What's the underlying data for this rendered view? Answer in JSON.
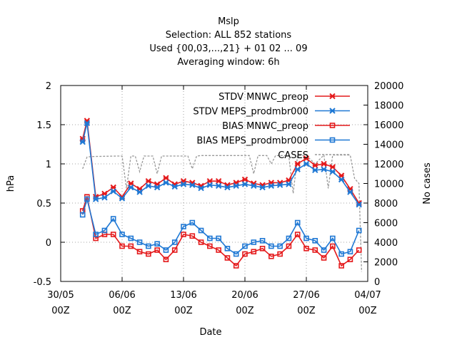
{
  "chart_data": {
    "type": "line",
    "title_lines": [
      "Mslp",
      "Selection: ALL    852 stations",
      "Used {00,03,...,21} + 01 02 ... 09",
      "Averaging window:  6h"
    ],
    "xlabel": "Date",
    "ylabel": "hPa",
    "y2label": "No cases",
    "ylim": [
      -0.5,
      2
    ],
    "y2lim": [
      0,
      20000
    ],
    "xlim_days": [
      0,
      35
    ],
    "y_ticks": [
      {
        "v": -0.5,
        "label": "-0.5"
      },
      {
        "v": 0,
        "label": "0"
      },
      {
        "v": 0.5,
        "label": "0.5"
      },
      {
        "v": 1,
        "label": "1"
      },
      {
        "v": 1.5,
        "label": "1.5"
      },
      {
        "v": 2,
        "label": "2"
      }
    ],
    "y2_ticks": [
      {
        "v": 0,
        "label": "0"
      },
      {
        "v": 2000,
        "label": "2000"
      },
      {
        "v": 4000,
        "label": "4000"
      },
      {
        "v": 6000,
        "label": "6000"
      },
      {
        "v": 8000,
        "label": "8000"
      },
      {
        "v": 10000,
        "label": "10000"
      },
      {
        "v": 12000,
        "label": "12000"
      },
      {
        "v": 14000,
        "label": "14000"
      },
      {
        "v": 16000,
        "label": "16000"
      },
      {
        "v": 18000,
        "label": "18000"
      },
      {
        "v": 20000,
        "label": "20000"
      }
    ],
    "x_ticks": [
      {
        "day": 0,
        "label": "30/05",
        "label2": "00Z"
      },
      {
        "day": 7,
        "label": "06/06",
        "label2": "00Z"
      },
      {
        "day": 14,
        "label": "13/06",
        "label2": "00Z"
      },
      {
        "day": 21,
        "label": "20/06",
        "label2": "00Z"
      },
      {
        "day": 28,
        "label": "27/06",
        "label2": "00Z"
      },
      {
        "day": 35,
        "label": "04/07",
        "label2": "00Z"
      }
    ],
    "grid": true,
    "legend_position": "top-right",
    "series": [
      {
        "name": "STDV MNWC_preop",
        "color": "#e41a1c",
        "marker": "x",
        "axis": "y1",
        "x": [
          2.5,
          3.0,
          4.0,
          5.0,
          6.0,
          7.0,
          8.0,
          9.0,
          10.0,
          11.0,
          12.0,
          13.0,
          14.0,
          15.0,
          16.0,
          17.0,
          18.0,
          19.0,
          20.0,
          21.0,
          22.0,
          23.0,
          24.0,
          25.0,
          26.0,
          27.0,
          28.0,
          29.0,
          30.0,
          31.0,
          32.0,
          33.0,
          34.0
        ],
        "y": [
          1.32,
          1.55,
          0.58,
          0.62,
          0.7,
          0.58,
          0.75,
          0.68,
          0.78,
          0.74,
          0.82,
          0.74,
          0.78,
          0.76,
          0.72,
          0.78,
          0.78,
          0.73,
          0.76,
          0.8,
          0.75,
          0.73,
          0.76,
          0.76,
          0.79,
          1.0,
          1.07,
          0.98,
          1.0,
          0.96,
          0.85,
          0.68,
          0.5
        ]
      },
      {
        "name": "STDV MEPS_prodmbr000",
        "color": "#1f78d4",
        "marker": "x",
        "axis": "y1",
        "x": [
          2.5,
          3.0,
          4.0,
          5.0,
          6.0,
          7.0,
          8.0,
          9.0,
          10.0,
          11.0,
          12.0,
          13.0,
          14.0,
          15.0,
          16.0,
          17.0,
          18.0,
          19.0,
          20.0,
          21.0,
          22.0,
          23.0,
          24.0,
          25.0,
          26.0,
          27.0,
          28.0,
          29.0,
          30.0,
          31.0,
          32.0,
          33.0,
          34.0
        ],
        "y": [
          1.28,
          1.52,
          0.55,
          0.57,
          0.65,
          0.56,
          0.7,
          0.64,
          0.72,
          0.7,
          0.76,
          0.71,
          0.74,
          0.73,
          0.69,
          0.73,
          0.72,
          0.7,
          0.72,
          0.74,
          0.72,
          0.7,
          0.72,
          0.73,
          0.74,
          0.93,
          1.0,
          0.92,
          0.93,
          0.9,
          0.8,
          0.64,
          0.48
        ]
      },
      {
        "name": "BIAS MNWC_preop",
        "color": "#e41a1c",
        "marker": "square",
        "axis": "y1",
        "x": [
          2.5,
          3.0,
          4.0,
          5.0,
          6.0,
          7.0,
          8.0,
          9.0,
          10.0,
          11.0,
          12.0,
          13.0,
          14.0,
          15.0,
          16.0,
          17.0,
          18.0,
          19.0,
          20.0,
          21.0,
          22.0,
          23.0,
          24.0,
          25.0,
          26.0,
          27.0,
          28.0,
          29.0,
          30.0,
          31.0,
          32.0,
          33.0,
          34.0
        ],
        "y": [
          0.4,
          0.58,
          0.05,
          0.1,
          0.1,
          -0.05,
          -0.05,
          -0.12,
          -0.15,
          -0.1,
          -0.22,
          -0.1,
          0.1,
          0.08,
          0.0,
          -0.05,
          -0.1,
          -0.2,
          -0.3,
          -0.15,
          -0.12,
          -0.08,
          -0.18,
          -0.15,
          -0.05,
          0.1,
          -0.08,
          -0.1,
          -0.2,
          -0.05,
          -0.3,
          -0.22,
          -0.1
        ]
      },
      {
        "name": "BIAS MEPS_prodmbr000",
        "color": "#1f78d4",
        "marker": "square",
        "axis": "y1",
        "x": [
          2.5,
          3.0,
          4.0,
          5.0,
          6.0,
          7.0,
          8.0,
          9.0,
          10.0,
          11.0,
          12.0,
          13.0,
          14.0,
          15.0,
          16.0,
          17.0,
          18.0,
          19.0,
          20.0,
          21.0,
          22.0,
          23.0,
          24.0,
          25.0,
          26.0,
          27.0,
          28.0,
          29.0,
          30.0,
          31.0,
          32.0,
          33.0,
          34.0
        ],
        "y": [
          0.35,
          0.55,
          0.1,
          0.15,
          0.3,
          0.1,
          0.05,
          0.0,
          -0.05,
          -0.02,
          -0.1,
          0.0,
          0.2,
          0.25,
          0.15,
          0.05,
          0.05,
          -0.08,
          -0.15,
          -0.05,
          0.0,
          0.02,
          -0.05,
          -0.05,
          0.05,
          0.25,
          0.05,
          0.02,
          -0.1,
          0.05,
          -0.15,
          -0.12,
          0.15
        ]
      },
      {
        "name": "CASES",
        "color": "#999999",
        "marker": "none",
        "dash": "3,2",
        "axis": "y2",
        "x": [
          2.5,
          3.0,
          3.5,
          6.5,
          7.0,
          7.5,
          8.0,
          8.5,
          9.0,
          9.5,
          10.0,
          10.5,
          11.0,
          11.5,
          14.0,
          14.5,
          15.0,
          15.5,
          16.0,
          21.0,
          21.5,
          22.0,
          22.5,
          23.0,
          23.5,
          24.0,
          24.5,
          26.0,
          26.5,
          27.0,
          28.0,
          29.0,
          30.0,
          30.5,
          31.0,
          33.0,
          33.5,
          34.0,
          34.3
        ],
        "y": [
          11500,
          12700,
          12750,
          12800,
          12800,
          9500,
          12800,
          12800,
          11200,
          12800,
          12800,
          12800,
          11000,
          12800,
          12800,
          12800,
          11500,
          12800,
          12850,
          12850,
          12850,
          11000,
          12850,
          12850,
          12850,
          12000,
          12850,
          12850,
          9000,
          12850,
          12850,
          12000,
          12900,
          9500,
          12900,
          12900,
          10500,
          10000,
          1000
        ]
      }
    ]
  }
}
